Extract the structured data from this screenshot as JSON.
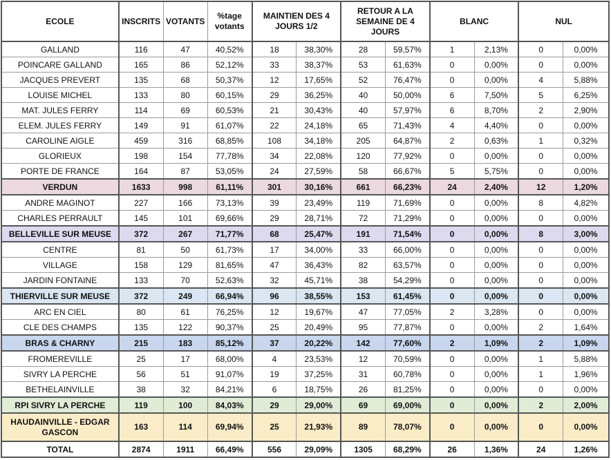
{
  "header": {
    "ecole": "ECOLE",
    "inscrits": "INSCRITS",
    "votants": "VOTANTS",
    "pct_votants": "%tage votants",
    "maintien": "MAINTIEN DES 4 JOURS 1/2",
    "retour": "RETOUR A LA SEMAINE DE 4 JOURS",
    "blanc": "BLANC",
    "nul": "NUL"
  },
  "colors": {
    "verdun": "#ecd9e0",
    "belleville": "#ddd9ee",
    "thierville": "#dae6f1",
    "bras": "#c8d6ee",
    "rpi": "#e1ecd6",
    "haudainville": "#fbecc8"
  },
  "rows": [
    {
      "ecole": "GALLAND",
      "inscrits": "116",
      "votants": "47",
      "pct": "40,52%",
      "m_n": "18",
      "m_p": "38,30%",
      "r_n": "28",
      "r_p": "59,57%",
      "b_n": "1",
      "b_p": "2,13%",
      "n_n": "0",
      "n_p": "0,00%"
    },
    {
      "ecole": "POINCARE GALLAND",
      "inscrits": "165",
      "votants": "86",
      "pct": "52,12%",
      "m_n": "33",
      "m_p": "38,37%",
      "r_n": "53",
      "r_p": "61,63%",
      "b_n": "0",
      "b_p": "0,00%",
      "n_n": "0",
      "n_p": "0,00%"
    },
    {
      "ecole": "JACQUES PREVERT",
      "inscrits": "135",
      "votants": "68",
      "pct": "50,37%",
      "m_n": "12",
      "m_p": "17,65%",
      "r_n": "52",
      "r_p": "76,47%",
      "b_n": "0",
      "b_p": "0,00%",
      "n_n": "4",
      "n_p": "5,88%"
    },
    {
      "ecole": "LOUISE MICHEL",
      "inscrits": "133",
      "votants": "80",
      "pct": "60,15%",
      "m_n": "29",
      "m_p": "36,25%",
      "r_n": "40",
      "r_p": "50,00%",
      "b_n": "6",
      "b_p": "7,50%",
      "n_n": "5",
      "n_p": "6,25%"
    },
    {
      "ecole": "MAT. JULES FERRY",
      "inscrits": "114",
      "votants": "69",
      "pct": "60,53%",
      "m_n": "21",
      "m_p": "30,43%",
      "r_n": "40",
      "r_p": "57,97%",
      "b_n": "6",
      "b_p": "8,70%",
      "n_n": "2",
      "n_p": "2,90%"
    },
    {
      "ecole": "ELEM. JULES FERRY",
      "inscrits": "149",
      "votants": "91",
      "pct": "61,07%",
      "m_n": "22",
      "m_p": "24,18%",
      "r_n": "65",
      "r_p": "71,43%",
      "b_n": "4",
      "b_p": "4,40%",
      "n_n": "0",
      "n_p": "0,00%"
    },
    {
      "ecole": "CAROLINE AIGLE",
      "inscrits": "459",
      "votants": "316",
      "pct": "68,85%",
      "m_n": "108",
      "m_p": "34,18%",
      "r_n": "205",
      "r_p": "64,87%",
      "b_n": "2",
      "b_p": "0,63%",
      "n_n": "1",
      "n_p": "0,32%"
    },
    {
      "ecole": "GLORIEUX",
      "inscrits": "198",
      "votants": "154",
      "pct": "77,78%",
      "m_n": "34",
      "m_p": "22,08%",
      "r_n": "120",
      "r_p": "77,92%",
      "b_n": "0",
      "b_p": "0,00%",
      "n_n": "0",
      "n_p": "0,00%"
    },
    {
      "ecole": "PORTE DE FRANCE",
      "inscrits": "164",
      "votants": "87",
      "pct": "53,05%",
      "m_n": "24",
      "m_p": "27,59%",
      "r_n": "58",
      "r_p": "66,67%",
      "b_n": "5",
      "b_p": "5,75%",
      "n_n": "0",
      "n_p": "0,00%"
    },
    {
      "ecole": "VERDUN",
      "inscrits": "1633",
      "votants": "998",
      "pct": "61,11%",
      "m_n": "301",
      "m_p": "30,16%",
      "r_n": "661",
      "r_p": "66,23%",
      "b_n": "24",
      "b_p": "2,40%",
      "n_n": "12",
      "n_p": "1,20%"
    },
    {
      "ecole": "ANDRE MAGINOT",
      "inscrits": "227",
      "votants": "166",
      "pct": "73,13%",
      "m_n": "39",
      "m_p": "23,49%",
      "r_n": "119",
      "r_p": "71,69%",
      "b_n": "0",
      "b_p": "0,00%",
      "n_n": "8",
      "n_p": "4,82%"
    },
    {
      "ecole": "CHARLES PERRAULT",
      "inscrits": "145",
      "votants": "101",
      "pct": "69,66%",
      "m_n": "29",
      "m_p": "28,71%",
      "r_n": "72",
      "r_p": "71,29%",
      "b_n": "0",
      "b_p": "0,00%",
      "n_n": "0",
      "n_p": "0,00%"
    },
    {
      "ecole": "BELLEVILLE SUR MEUSE",
      "inscrits": "372",
      "votants": "267",
      "pct": "71,77%",
      "m_n": "68",
      "m_p": "25,47%",
      "r_n": "191",
      "r_p": "71,54%",
      "b_n": "0",
      "b_p": "0,00%",
      "n_n": "8",
      "n_p": "3,00%"
    },
    {
      "ecole": "CENTRE",
      "inscrits": "81",
      "votants": "50",
      "pct": "61,73%",
      "m_n": "17",
      "m_p": "34,00%",
      "r_n": "33",
      "r_p": "66,00%",
      "b_n": "0",
      "b_p": "0,00%",
      "n_n": "0",
      "n_p": "0,00%"
    },
    {
      "ecole": "VILLAGE",
      "inscrits": "158",
      "votants": "129",
      "pct": "81,65%",
      "m_n": "47",
      "m_p": "36,43%",
      "r_n": "82",
      "r_p": "63,57%",
      "b_n": "0",
      "b_p": "0,00%",
      "n_n": "0",
      "n_p": "0,00%"
    },
    {
      "ecole": "JARDIN FONTAINE",
      "inscrits": "133",
      "votants": "70",
      "pct": "52,63%",
      "m_n": "32",
      "m_p": "45,71%",
      "r_n": "38",
      "r_p": "54,29%",
      "b_n": "0",
      "b_p": "0,00%",
      "n_n": "0",
      "n_p": "0,00%"
    },
    {
      "ecole": "THIERVILLE SUR MEUSE",
      "inscrits": "372",
      "votants": "249",
      "pct": "66,94%",
      "m_n": "96",
      "m_p": "38,55%",
      "r_n": "153",
      "r_p": "61,45%",
      "b_n": "0",
      "b_p": "0,00%",
      "n_n": "0",
      "n_p": "0,00%"
    },
    {
      "ecole": "ARC EN CIEL",
      "inscrits": "80",
      "votants": "61",
      "pct": "76,25%",
      "m_n": "12",
      "m_p": "19,67%",
      "r_n": "47",
      "r_p": "77,05%",
      "b_n": "2",
      "b_p": "3,28%",
      "n_n": "0",
      "n_p": "0,00%"
    },
    {
      "ecole": "CLE DES CHAMPS",
      "inscrits": "135",
      "votants": "122",
      "pct": "90,37%",
      "m_n": "25",
      "m_p": "20,49%",
      "r_n": "95",
      "r_p": "77,87%",
      "b_n": "0",
      "b_p": "0,00%",
      "n_n": "2",
      "n_p": "1,64%"
    },
    {
      "ecole": "BRAS & CHARNY",
      "inscrits": "215",
      "votants": "183",
      "pct": "85,12%",
      "m_n": "37",
      "m_p": "20,22%",
      "r_n": "142",
      "r_p": "77,60%",
      "b_n": "2",
      "b_p": "1,09%",
      "n_n": "2",
      "n_p": "1,09%"
    },
    {
      "ecole": "FROMEREVILLE",
      "inscrits": "25",
      "votants": "17",
      "pct": "68,00%",
      "m_n": "4",
      "m_p": "23,53%",
      "r_n": "12",
      "r_p": "70,59%",
      "b_n": "0",
      "b_p": "0,00%",
      "n_n": "1",
      "n_p": "5,88%"
    },
    {
      "ecole": "SIVRY LA PERCHE",
      "inscrits": "56",
      "votants": "51",
      "pct": "91,07%",
      "m_n": "19",
      "m_p": "37,25%",
      "r_n": "31",
      "r_p": "60,78%",
      "b_n": "0",
      "b_p": "0,00%",
      "n_n": "1",
      "n_p": "1,96%"
    },
    {
      "ecole": "BETHELAINVILLE",
      "inscrits": "38",
      "votants": "32",
      "pct": "84,21%",
      "m_n": "6",
      "m_p": "18,75%",
      "r_n": "26",
      "r_p": "81,25%",
      "b_n": "0",
      "b_p": "0,00%",
      "n_n": "0",
      "n_p": "0,00%"
    },
    {
      "ecole": "RPI SIVRY LA PERCHE",
      "inscrits": "119",
      "votants": "100",
      "pct": "84,03%",
      "m_n": "29",
      "m_p": "29,00%",
      "r_n": "69",
      "r_p": "69,00%",
      "b_n": "0",
      "b_p": "0,00%",
      "n_n": "2",
      "n_p": "2,00%"
    },
    {
      "ecole": "HAUDAINVILLE - EDGAR GASCON",
      "inscrits": "163",
      "votants": "114",
      "pct": "69,94%",
      "m_n": "25",
      "m_p": "21,93%",
      "r_n": "89",
      "r_p": "78,07%",
      "b_n": "0",
      "b_p": "0,00%",
      "n_n": "0",
      "n_p": "0,00%"
    },
    {
      "ecole": "TOTAL",
      "inscrits": "2874",
      "votants": "1911",
      "pct": "66,49%",
      "m_n": "556",
      "m_p": "29,09%",
      "r_n": "1305",
      "r_p": "68,29%",
      "b_n": "26",
      "b_p": "1,36%",
      "n_n": "24",
      "n_p": "1,26%"
    }
  ]
}
